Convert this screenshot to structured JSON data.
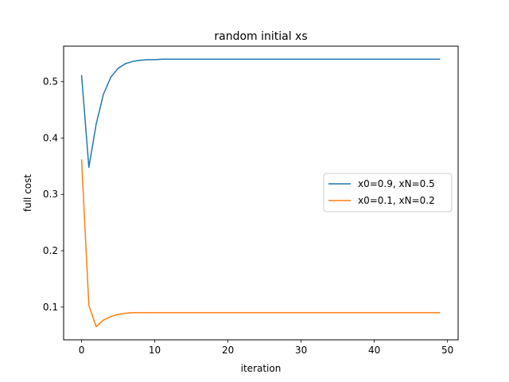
{
  "chart_data": {
    "type": "line",
    "title": "random initial xs",
    "xlabel": "iteration",
    "ylabel": "full cost",
    "xlim": [
      -2.45,
      51.45
    ],
    "ylim": [
      0.0418,
      0.5631
    ],
    "xticks": [
      0,
      10,
      20,
      30,
      40,
      50
    ],
    "yticks": [
      0.1,
      0.2,
      0.3,
      0.4,
      0.5
    ],
    "grid": false,
    "legend_position": "center-right",
    "series": [
      {
        "name": "x0=0.9, xN=0.5",
        "color": "#1f77b4",
        "x": [
          0,
          1,
          2,
          3,
          4,
          5,
          6,
          7,
          8,
          9,
          10,
          11,
          12,
          13,
          14,
          15,
          16,
          17,
          18,
          19,
          20,
          21,
          22,
          23,
          24,
          25,
          26,
          27,
          28,
          29,
          30,
          31,
          32,
          33,
          34,
          35,
          36,
          37,
          38,
          39,
          40,
          41,
          42,
          43,
          44,
          45,
          46,
          47,
          48,
          49
        ],
        "values": [
          0.512,
          0.348,
          0.425,
          0.478,
          0.508,
          0.524,
          0.532,
          0.536,
          0.538,
          0.539,
          0.539,
          0.54,
          0.54,
          0.54,
          0.54,
          0.54,
          0.54,
          0.54,
          0.54,
          0.54,
          0.54,
          0.54,
          0.54,
          0.54,
          0.54,
          0.54,
          0.54,
          0.54,
          0.54,
          0.54,
          0.54,
          0.54,
          0.54,
          0.54,
          0.54,
          0.54,
          0.54,
          0.54,
          0.54,
          0.54,
          0.54,
          0.54,
          0.54,
          0.54,
          0.54,
          0.54,
          0.54,
          0.54,
          0.54,
          0.54
        ]
      },
      {
        "name": "x0=0.1, xN=0.2",
        "color": "#ff7f0e",
        "x": [
          0,
          1,
          2,
          3,
          4,
          5,
          6,
          7,
          8,
          9,
          10,
          11,
          12,
          13,
          14,
          15,
          16,
          17,
          18,
          19,
          20,
          21,
          22,
          23,
          24,
          25,
          26,
          27,
          28,
          29,
          30,
          31,
          32,
          33,
          34,
          35,
          36,
          37,
          38,
          39,
          40,
          41,
          42,
          43,
          44,
          45,
          46,
          47,
          48,
          49
        ],
        "values": [
          0.362,
          0.103,
          0.065,
          0.077,
          0.083,
          0.087,
          0.089,
          0.09,
          0.09,
          0.09,
          0.09,
          0.09,
          0.09,
          0.09,
          0.09,
          0.09,
          0.09,
          0.09,
          0.09,
          0.09,
          0.09,
          0.09,
          0.09,
          0.09,
          0.09,
          0.09,
          0.09,
          0.09,
          0.09,
          0.09,
          0.09,
          0.09,
          0.09,
          0.09,
          0.09,
          0.09,
          0.09,
          0.09,
          0.09,
          0.09,
          0.09,
          0.09,
          0.09,
          0.09,
          0.09,
          0.09,
          0.09,
          0.09,
          0.09,
          0.09
        ]
      }
    ]
  }
}
